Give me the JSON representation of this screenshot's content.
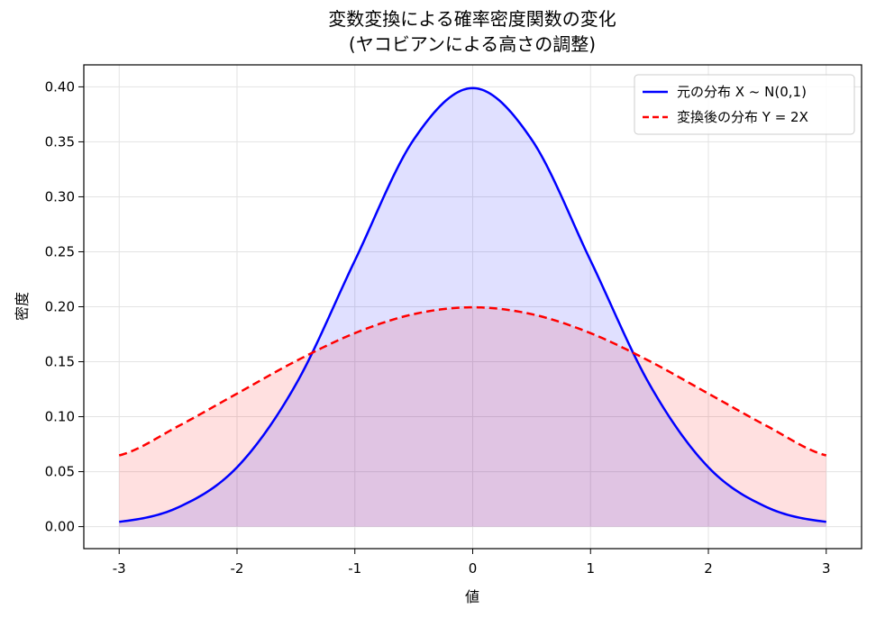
{
  "chart_data": {
    "type": "line",
    "title": "変数変換による確率密度関数の変化",
    "subtitle": "(ヤコビアンによる高さの調整)",
    "xlabel": "値",
    "ylabel": "密度",
    "xlim": [
      -3.3,
      3.3
    ],
    "ylim": [
      -0.02,
      0.42
    ],
    "x_ticks": [
      "-3",
      "-2",
      "-1",
      "0",
      "1",
      "2",
      "3"
    ],
    "y_ticks": [
      "0.00",
      "0.05",
      "0.10",
      "0.15",
      "0.20",
      "0.25",
      "0.30",
      "0.35",
      "0.40"
    ],
    "grid": true,
    "legend_position": "top-right",
    "series": [
      {
        "name": "元の分布 X ~ N(0,1)",
        "style": "solid",
        "color": "#0000ff",
        "fill": "#e0e0ff",
        "x": [
          -3.0,
          -2.5,
          -2.0,
          -1.5,
          -1.0,
          -0.5,
          0.0,
          0.5,
          1.0,
          1.5,
          2.0,
          2.5,
          3.0
        ],
        "values": [
          0.0044,
          0.0175,
          0.054,
          0.1295,
          0.242,
          0.3521,
          0.3989,
          0.3521,
          0.242,
          0.1295,
          0.054,
          0.0175,
          0.0044
        ]
      },
      {
        "name": "変換後の分布 Y = 2X",
        "style": "dashed",
        "color": "#ff0000",
        "fill": "#ffe0e0",
        "x": [
          -3.0,
          -2.5,
          -2.0,
          -1.5,
          -1.0,
          -0.5,
          0.0,
          0.5,
          1.0,
          1.5,
          2.0,
          2.5,
          3.0
        ],
        "values": [
          0.0648,
          0.0913,
          0.121,
          0.1506,
          0.176,
          0.1933,
          0.1995,
          0.1933,
          0.176,
          0.1506,
          0.121,
          0.0913,
          0.0648
        ]
      }
    ]
  }
}
